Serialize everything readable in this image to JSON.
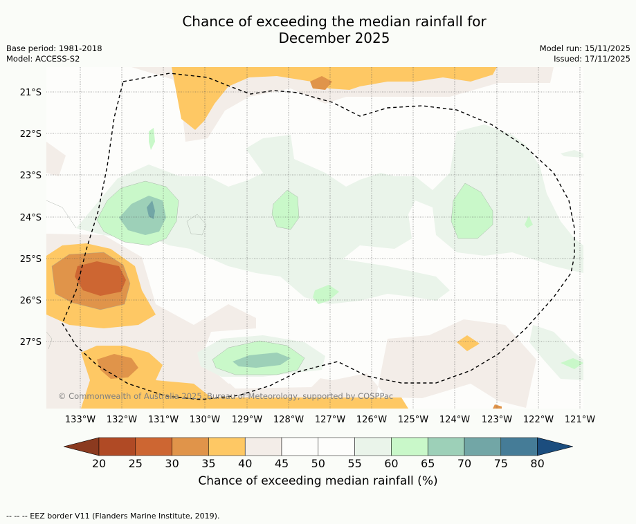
{
  "title_line1": "Chance of exceeding the median rainfall for",
  "title_line2": "December 2025",
  "base_period": "Base period: 1981-2018",
  "model": "Model: ACCESS-S2",
  "model_run": "Model run: 15/11/2025",
  "issued": "Issued: 17/11/2025",
  "copyright": "© Commonwealth of Australia 2025, Bureau of Meteorology, supported by COSPPac",
  "footer_note": "-- -- -- EEZ border V11 (Flanders Marine Institute, 2019).",
  "map": {
    "lat_labels": [
      "21°S",
      "22°S",
      "23°S",
      "24°S",
      "25°S",
      "26°S",
      "27°S"
    ],
    "lon_labels": [
      "133°W",
      "132°W",
      "131°W",
      "130°W",
      "129°W",
      "128°W",
      "127°W",
      "126°W",
      "125°W",
      "124°W",
      "123°W",
      "122°W",
      "121°W"
    ]
  },
  "colorbar": {
    "label": "Chance of exceeding median rainfall (%)",
    "ticks": [
      "20",
      "25",
      "30",
      "35",
      "40",
      "45",
      "50",
      "55",
      "60",
      "65",
      "70",
      "75",
      "80"
    ],
    "colors": [
      "#8b3a1f",
      "#b04a25",
      "#cd6632",
      "#e0944a",
      "#fec864",
      "#f3ede8",
      "#fdfdfb",
      "#fdfdfb",
      "#eaf4ea",
      "#c9f8c9",
      "#9dd0b8",
      "#72a6a6",
      "#457c97",
      "#1b4d7e"
    ]
  }
}
